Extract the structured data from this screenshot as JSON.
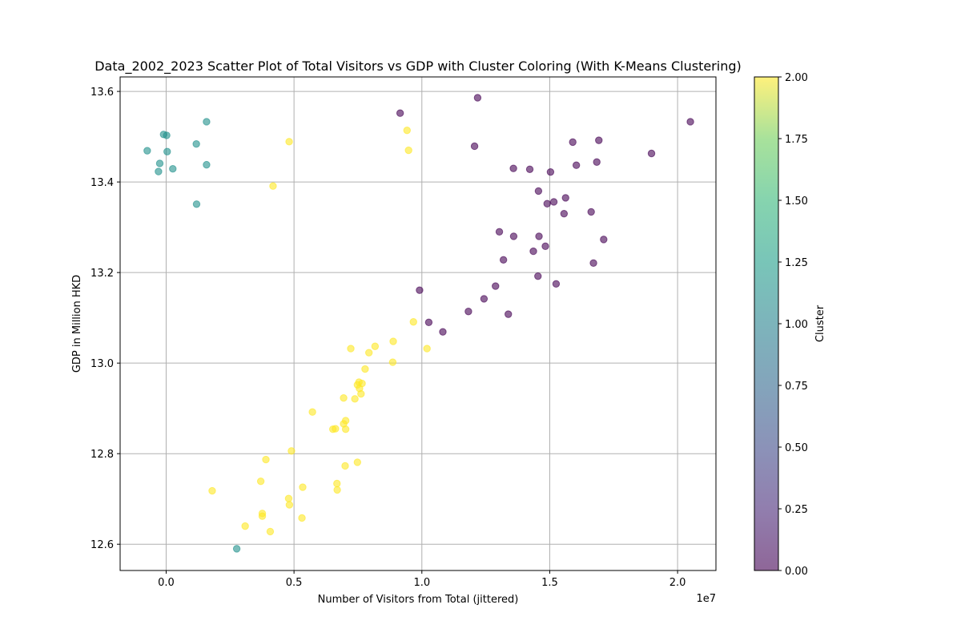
{
  "chart_data": {
    "type": "scatter",
    "title": "Data_2002_2023 Scatter Plot of Total Visitors vs GDP with Cluster Coloring (With K-Means Clustering)",
    "xlabel": "Number of Visitors from Total (jittered)",
    "ylabel": "GDP in Million HKD",
    "x_offset_label": "1e7",
    "xlim": [
      -1800000,
      21500000
    ],
    "ylim": [
      12.542,
      13.632
    ],
    "xticks": [
      0,
      5000000,
      10000000,
      15000000,
      20000000
    ],
    "xtick_labels": [
      "0.0",
      "0.5",
      "1.0",
      "1.5",
      "2.0"
    ],
    "yticks": [
      12.6,
      12.8,
      13.0,
      13.2,
      13.4,
      13.6
    ],
    "ytick_labels": [
      "12.6",
      "12.8",
      "13.0",
      "13.2",
      "13.4",
      "13.6"
    ],
    "grid": true,
    "colorbar": {
      "label": "Cluster",
      "range": [
        0,
        2
      ],
      "ticks": [
        0,
        0.25,
        0.5,
        0.75,
        1.0,
        1.25,
        1.5,
        1.75,
        2.0
      ],
      "tick_labels": [
        "0.00",
        "0.25",
        "0.50",
        "0.75",
        "1.00",
        "1.25",
        "1.50",
        "1.75",
        "2.00"
      ],
      "colormap": "viridis"
    },
    "point_alpha": 0.6,
    "series": [
      {
        "cluster": 0,
        "color": "#440154",
        "points": [
          [
            9150000,
            13.552
          ],
          [
            12180000,
            13.586
          ],
          [
            12060000,
            13.479
          ],
          [
            13580000,
            13.43
          ],
          [
            14220000,
            13.428
          ],
          [
            15030000,
            13.422
          ],
          [
            15900000,
            13.488
          ],
          [
            16920000,
            13.492
          ],
          [
            18980000,
            13.463
          ],
          [
            20500000,
            13.533
          ],
          [
            16040000,
            13.437
          ],
          [
            16840000,
            13.444
          ],
          [
            14560000,
            13.38
          ],
          [
            14900000,
            13.352
          ],
          [
            15160000,
            13.356
          ],
          [
            15620000,
            13.365
          ],
          [
            15560000,
            13.33
          ],
          [
            16620000,
            13.334
          ],
          [
            13030000,
            13.29
          ],
          [
            13590000,
            13.28
          ],
          [
            14580000,
            13.28
          ],
          [
            17110000,
            13.273
          ],
          [
            14830000,
            13.258
          ],
          [
            14360000,
            13.247
          ],
          [
            13190000,
            13.228
          ],
          [
            16710000,
            13.221
          ],
          [
            14540000,
            13.192
          ],
          [
            15250000,
            13.175
          ],
          [
            9910000,
            13.161
          ],
          [
            12880000,
            13.17
          ],
          [
            12430000,
            13.142
          ],
          [
            11820000,
            13.114
          ],
          [
            13380000,
            13.108
          ],
          [
            10270000,
            13.09
          ],
          [
            10820000,
            13.069
          ]
        ]
      },
      {
        "cluster": 1,
        "color": "#21918c",
        "points": [
          [
            -100000,
            13.505
          ],
          [
            20000,
            13.503
          ],
          [
            1580000,
            13.533
          ],
          [
            -740000,
            13.469
          ],
          [
            40000,
            13.467
          ],
          [
            1180000,
            13.484
          ],
          [
            -250000,
            13.441
          ],
          [
            1580000,
            13.438
          ],
          [
            -300000,
            13.423
          ],
          [
            260000,
            13.429
          ],
          [
            1190000,
            13.351
          ],
          [
            2760000,
            12.59
          ]
        ]
      },
      {
        "cluster": 2,
        "color": "#fde725",
        "points": [
          [
            9420000,
            13.514
          ],
          [
            4810000,
            13.489
          ],
          [
            9480000,
            13.47
          ],
          [
            4180000,
            13.391
          ],
          [
            9670000,
            13.091
          ],
          [
            8880000,
            13.048
          ],
          [
            8170000,
            13.037
          ],
          [
            7220000,
            13.032
          ],
          [
            10200000,
            13.032
          ],
          [
            7930000,
            13.023
          ],
          [
            8860000,
            13.002
          ],
          [
            7780000,
            12.987
          ],
          [
            7540000,
            12.958
          ],
          [
            7480000,
            12.952
          ],
          [
            7660000,
            12.955
          ],
          [
            7560000,
            12.944
          ],
          [
            7620000,
            12.932
          ],
          [
            6940000,
            12.923
          ],
          [
            7380000,
            12.921
          ],
          [
            7020000,
            12.873
          ],
          [
            6940000,
            12.866
          ],
          [
            5720000,
            12.892
          ],
          [
            6520000,
            12.854
          ],
          [
            6620000,
            12.855
          ],
          [
            7020000,
            12.854
          ],
          [
            4900000,
            12.806
          ],
          [
            3900000,
            12.787
          ],
          [
            7480000,
            12.781
          ],
          [
            7000000,
            12.773
          ],
          [
            6680000,
            12.734
          ],
          [
            3700000,
            12.739
          ],
          [
            5340000,
            12.726
          ],
          [
            6690000,
            12.72
          ],
          [
            1800000,
            12.718
          ],
          [
            4790000,
            12.701
          ],
          [
            4820000,
            12.687
          ],
          [
            3760000,
            12.668
          ],
          [
            3760000,
            12.662
          ],
          [
            5310000,
            12.658
          ],
          [
            3090000,
            12.64
          ],
          [
            4070000,
            12.628
          ]
        ]
      }
    ]
  }
}
